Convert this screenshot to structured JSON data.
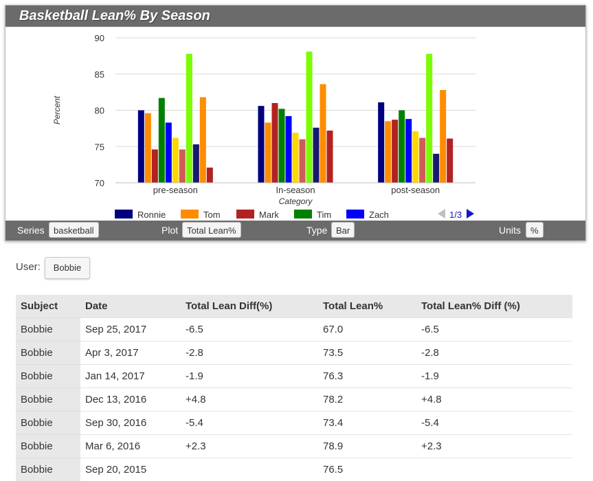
{
  "panel": {
    "title": "Basketball Lean% By Season"
  },
  "chart_data": {
    "type": "bar",
    "xlabel": "Category",
    "ylabel": "Percent",
    "ylim": [
      70,
      90
    ],
    "yticks": [
      70,
      75,
      80,
      85,
      90
    ],
    "grid": true,
    "categories": [
      "pre-season",
      "In-season",
      "post-season"
    ],
    "series": [
      {
        "name": "Ronnie",
        "color": "#000080",
        "values": [
          80.0,
          80.6,
          81.1
        ]
      },
      {
        "name": "Tom",
        "color": "#ff8c00",
        "values": [
          79.6,
          78.3,
          78.5
        ]
      },
      {
        "name": "Mark",
        "color": "#b22222",
        "values": [
          74.6,
          81.0,
          78.7
        ]
      },
      {
        "name": "Tim",
        "color": "#008000",
        "values": [
          81.7,
          80.2,
          80.0
        ]
      },
      {
        "name": "Zach",
        "color": "#0000ff",
        "values": [
          78.3,
          79.2,
          78.8
        ]
      },
      {
        "name": "",
        "color": "#ffd700",
        "values": [
          76.2,
          76.9,
          77.1
        ]
      },
      {
        "name": "",
        "color": "#cd5c5c",
        "values": [
          74.6,
          76.0,
          76.2
        ]
      },
      {
        "name": "",
        "color": "#7cfc00",
        "values": [
          87.8,
          88.1,
          87.8
        ]
      },
      {
        "name": "",
        "color": "#191970",
        "values": [
          75.3,
          77.6,
          74.0
        ]
      },
      {
        "name": "",
        "color": "#ff8c00",
        "values": [
          81.8,
          83.6,
          82.8
        ]
      },
      {
        "name": "",
        "color": "#b22222",
        "values": [
          72.1,
          77.2,
          76.1
        ]
      }
    ],
    "legend": {
      "position": "bottom",
      "page": "1/3"
    }
  },
  "controls": {
    "series_label": "Series",
    "series_value": "basketball",
    "plot_label": "Plot",
    "plot_value": "Total Lean%",
    "type_label": "Type",
    "type_value": "Bar",
    "units_label": "Units",
    "units_value": "%"
  },
  "user": {
    "label": "User:",
    "value": "Bobbie"
  },
  "table": {
    "headers": [
      "Subject",
      "Date",
      "Total Lean Diff(%)",
      "Total Lean%",
      "Total Lean% Diff (%)"
    ],
    "rows": [
      [
        "Bobbie",
        "Sep 25, 2017",
        "-6.5",
        "67.0",
        "-6.5"
      ],
      [
        "Bobbie",
        "Apr 3, 2017",
        "-2.8",
        "73.5",
        "-2.8"
      ],
      [
        "Bobbie",
        "Jan 14, 2017",
        "-1.9",
        "76.3",
        "-1.9"
      ],
      [
        "Bobbie",
        "Dec 13, 2016",
        "+4.8",
        "78.2",
        "+4.8"
      ],
      [
        "Bobbie",
        "Sep 30, 2016",
        "-5.4",
        "73.4",
        "-5.4"
      ],
      [
        "Bobbie",
        "Mar 6, 2016",
        "+2.3",
        "78.9",
        "+2.3"
      ],
      [
        "Bobbie",
        "Sep 20, 2015",
        "",
        "76.5",
        ""
      ]
    ]
  },
  "icons": {
    "prev": "triangle-left-icon",
    "next": "triangle-right-icon"
  },
  "colors": {
    "header_bg": "#6b6b6b",
    "nav_active": "#1515c4",
    "nav_disabled": "#c0c0c0"
  }
}
